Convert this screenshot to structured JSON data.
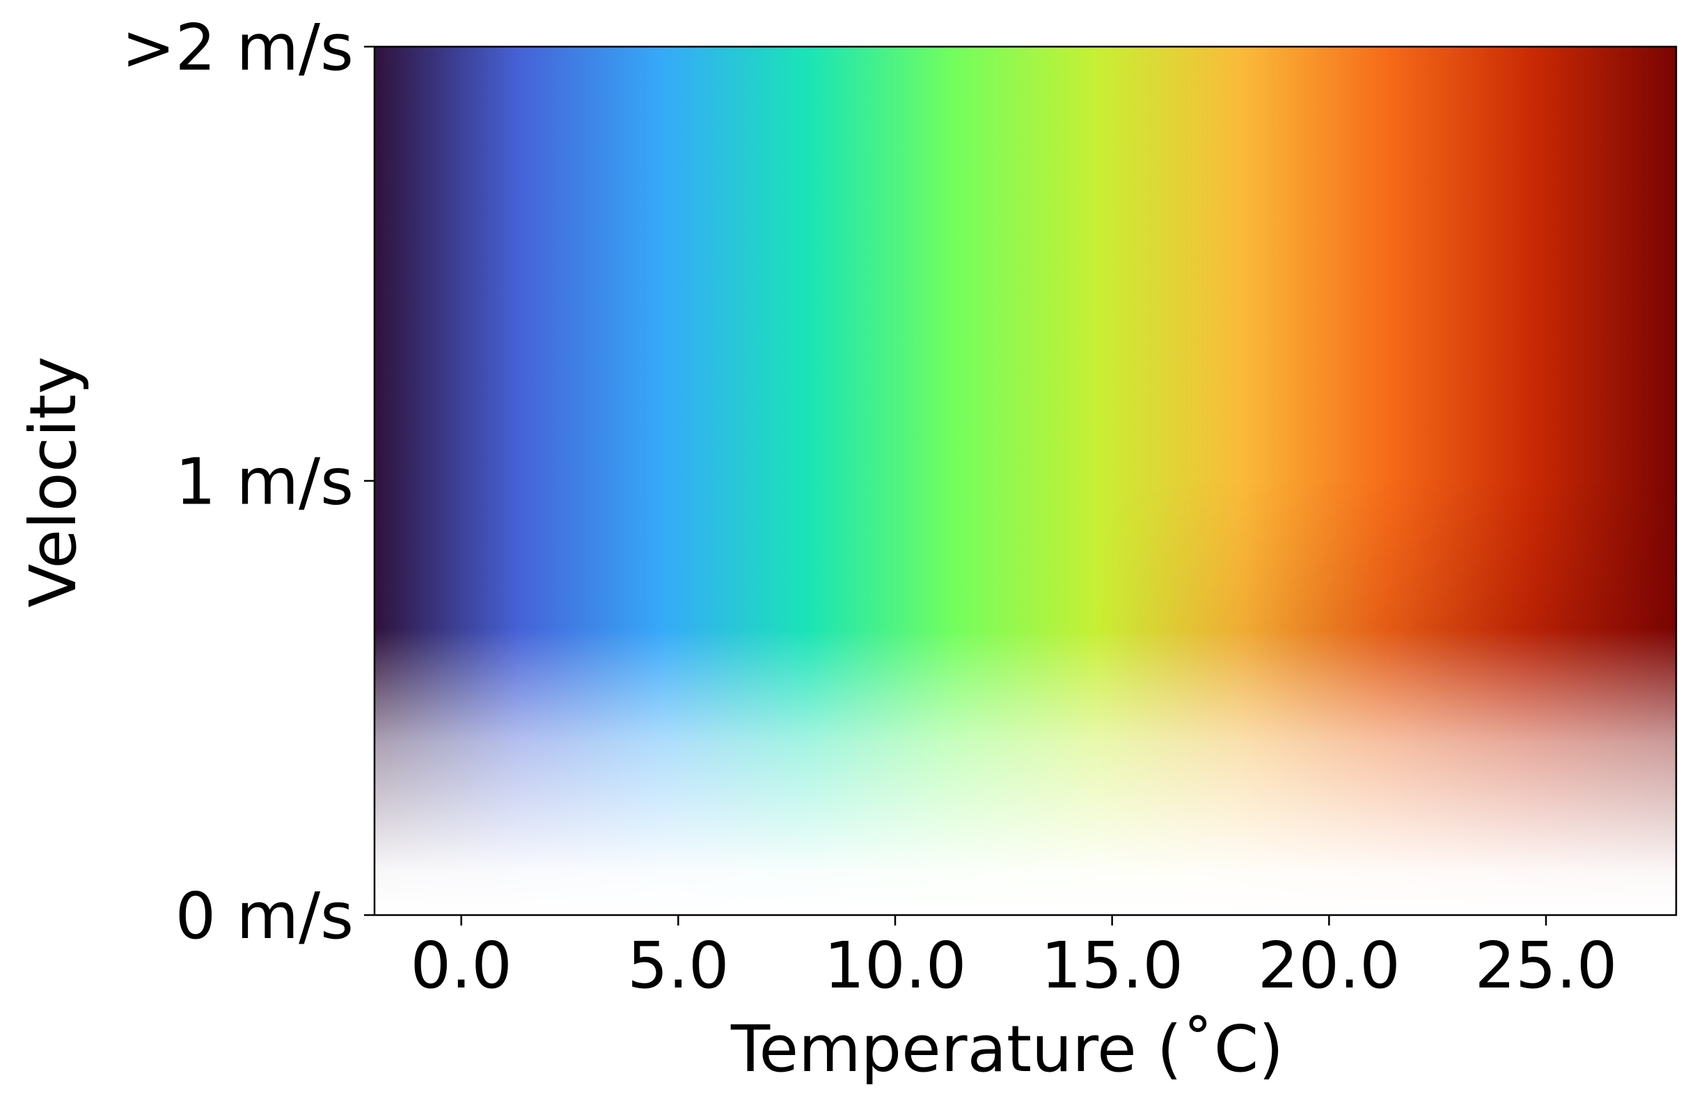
{
  "chart_data": {
    "type": "colormap2d",
    "x_label": "Temperature (˚C)",
    "y_label": "Velocity",
    "xlim": [
      -2,
      28
    ],
    "xticks": [
      {
        "value": 0,
        "label": "0.0"
      },
      {
        "value": 5,
        "label": "5.0"
      },
      {
        "value": 10,
        "label": "10.0"
      },
      {
        "value": 15,
        "label": "15.0"
      },
      {
        "value": 20,
        "label": "20.0"
      },
      {
        "value": 25,
        "label": "25.0"
      }
    ],
    "ylim": [
      0,
      2
    ],
    "yticks": [
      {
        "value": 0,
        "label": "0 m/s"
      },
      {
        "value": 1,
        "label": "1 m/s"
      },
      {
        "value": 2,
        "label": ">2 m/s"
      }
    ],
    "colormap": [
      "#30123b",
      "#4662d7",
      "#36aaf9",
      "#1ae4b6",
      "#72fe5e",
      "#c8ef34",
      "#faba39",
      "#f66b19",
      "#ca2a04",
      "#7a0403"
    ]
  }
}
